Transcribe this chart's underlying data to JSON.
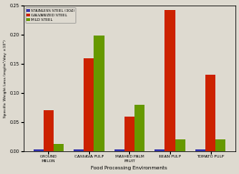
{
  "categories": [
    "GROUND\nMELON",
    "CASSAVA PULP",
    "MASHED PALM\nFRUIT",
    "BEAN PULP",
    "TOMATO PULP"
  ],
  "stainless_steel": [
    0.004,
    0.004,
    0.004,
    0.003,
    0.004
  ],
  "galvanized_steel": [
    0.07,
    0.16,
    0.06,
    0.242,
    0.132
  ],
  "mild_steel": [
    0.013,
    0.198,
    0.08,
    0.02,
    0.02
  ],
  "stainless_color": "#3333AA",
  "galvanized_color": "#CC2200",
  "mild_color": "#669900",
  "ylabel": "Specific Weight Loss (mg/m²/day ×10²)",
  "xlabel": "Food Processing Environments",
  "ylim": [
    0,
    0.25
  ],
  "yticks": [
    0,
    0.05,
    0.1,
    0.15,
    0.2,
    0.25
  ],
  "legend_labels": [
    "STAINLESS STEEL (304)",
    "GALVANIZED STEEL",
    "MILD STEEL"
  ],
  "background_color": "#dedad0",
  "bar_width": 0.25
}
